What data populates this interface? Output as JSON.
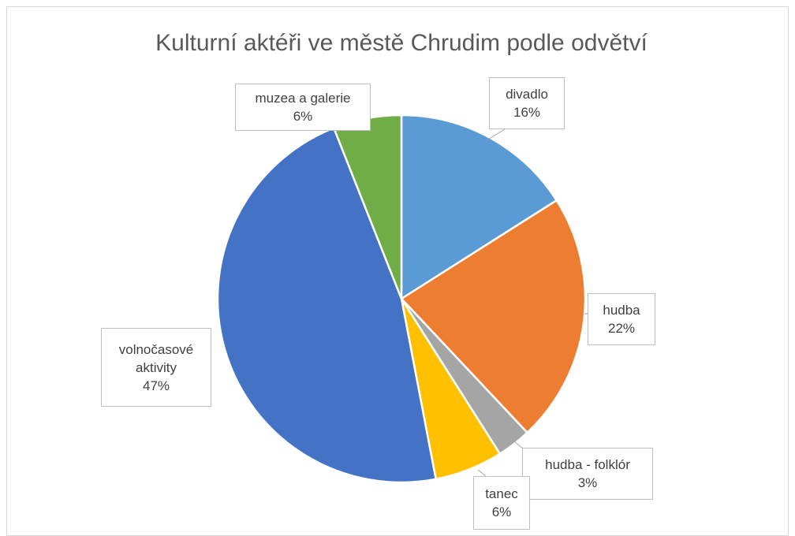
{
  "chart_data": {
    "type": "pie",
    "title": "Kulturní aktéři ve městě Chrudim podle odvětví",
    "categories": [
      "divadlo",
      "hudba",
      "hudba - folklór",
      "tanec",
      "volnočasové aktivity",
      "muzea a galerie"
    ],
    "values": [
      16,
      22,
      3,
      6,
      47,
      6
    ],
    "value_labels": [
      "16%",
      "22%",
      "3%",
      "6%",
      "47%",
      "6%"
    ],
    "colors": [
      "#5b9bd5",
      "#ed7d31",
      "#a5a5a5",
      "#ffc000",
      "#4472c4",
      "#70ad47"
    ]
  }
}
